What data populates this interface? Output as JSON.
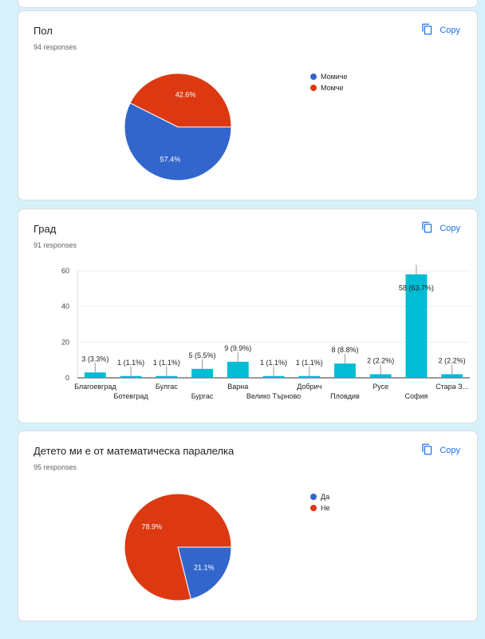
{
  "copy_label": "Copy",
  "questions": [
    {
      "title": "Пол",
      "responses": "94 responses",
      "chart_data": {
        "type": "pie",
        "labels": [
          "Момиче",
          "Момче"
        ],
        "values": [
          57.4,
          42.6
        ],
        "slice_labels": [
          "57.4%",
          "42.6%"
        ],
        "colors": [
          "#3366cc",
          "#dc3912"
        ],
        "legend": "right"
      }
    },
    {
      "title": "Град",
      "responses": "91 responses",
      "chart_data": {
        "type": "bar",
        "categories": [
          "Благоевград",
          "Ботевград",
          "Булгас",
          "Бургас",
          "Варна",
          "Велико Търново",
          "Добрич",
          "Пловдив",
          "Русе",
          "София",
          "Стара З..."
        ],
        "values": [
          3,
          1,
          1,
          5,
          9,
          1,
          1,
          8,
          2,
          58,
          2
        ],
        "data_labels": [
          "3 (3.3%)",
          "1 (1.1%)",
          "1 (1.1%)",
          "5 (5.5%)",
          "9 (9.9%)",
          "1 (1.1%)",
          "1 (1.1%)",
          "8 (8.8%)",
          "2 (2.2%)",
          "58 (63.7%)",
          "2 (2.2%)"
        ],
        "y_ticks": [
          "0",
          "20",
          "40",
          "60"
        ],
        "ylim": [
          0,
          60
        ],
        "color": "#00bcd4",
        "grid": true
      }
    },
    {
      "title": "Детето ми е от математическа паралелка",
      "responses": "95 responses",
      "chart_data": {
        "type": "pie",
        "labels": [
          "Да",
          "Не"
        ],
        "values": [
          21.1,
          78.9
        ],
        "slice_labels": [
          "21.1%",
          "78.9%"
        ],
        "colors": [
          "#3366cc",
          "#dc3912"
        ],
        "legend": "right"
      }
    }
  ]
}
